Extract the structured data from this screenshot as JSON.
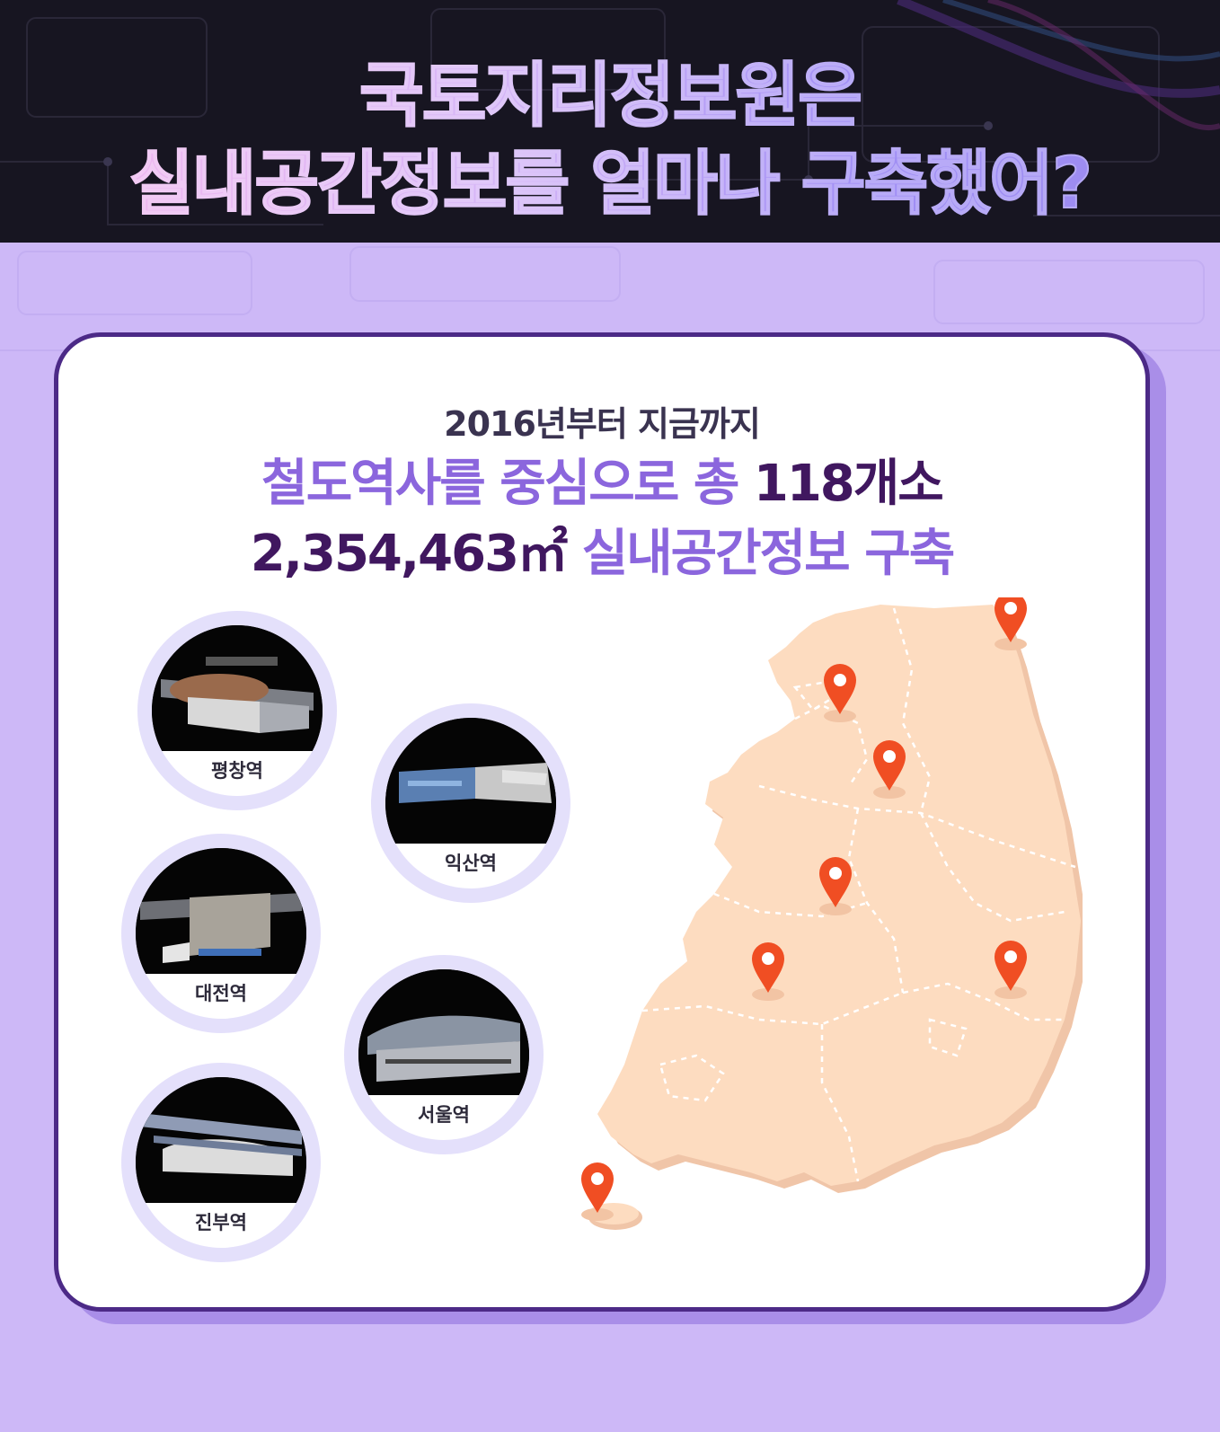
{
  "header": {
    "title_line1": "국토지리정보원은",
    "title_line2": "실내공간정보를 얼마나 구축했어?"
  },
  "card": {
    "subtitle": "2016년부터 지금까지",
    "headline1_prefix": "철도역사를 중심으로 총 ",
    "headline1_count": "118개소",
    "headline2_area": "2,354,463㎡",
    "headline2_suffix": " 실내공간정보 구축"
  },
  "stations": [
    {
      "label": "평창역"
    },
    {
      "label": "익산역"
    },
    {
      "label": "대전역"
    },
    {
      "label": "서울역"
    },
    {
      "label": "진부역"
    }
  ],
  "colors": {
    "background": "#cdb8f7",
    "header": "#171521",
    "card_border": "#4c2a87",
    "accent_purple": "#8b66dd",
    "dark_purple": "#40175f",
    "map_fill": "#fddcc0",
    "pin": "#f04e23"
  },
  "icons": [
    "location-pin-icon"
  ]
}
